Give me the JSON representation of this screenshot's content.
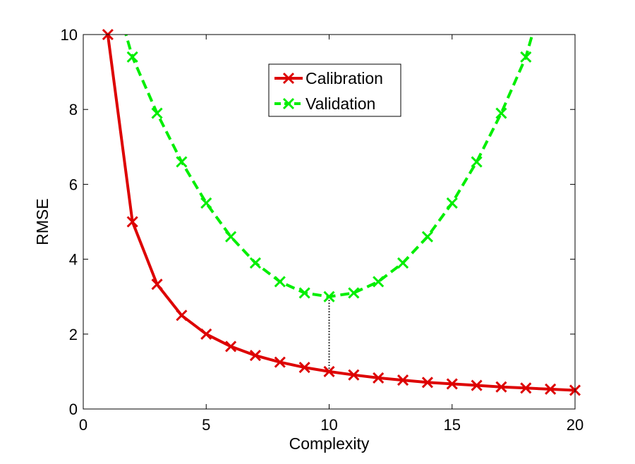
{
  "chart_data": {
    "type": "line",
    "xlabel": "Complexity",
    "ylabel": "RMSE",
    "xlim": [
      0,
      20
    ],
    "ylim": [
      0,
      10
    ],
    "xticks": [
      0,
      5,
      10,
      15,
      20
    ],
    "yticks": [
      0,
      2,
      4,
      6,
      8,
      10
    ],
    "grid": false,
    "legend_position": "top-center",
    "series": [
      {
        "name": "Calibration",
        "color": "#dd0000",
        "line_style": "solid",
        "marker": "x",
        "x": [
          1,
          2,
          3,
          4,
          5,
          6,
          7,
          8,
          9,
          10,
          11,
          12,
          13,
          14,
          15,
          16,
          17,
          18,
          19,
          20
        ],
        "values": [
          10.0,
          5.0,
          3.33,
          2.5,
          2.0,
          1.67,
          1.43,
          1.25,
          1.11,
          1.0,
          0.91,
          0.83,
          0.77,
          0.71,
          0.67,
          0.63,
          0.59,
          0.56,
          0.53,
          0.5
        ]
      },
      {
        "name": "Validation",
        "color": "#00ee00",
        "line_style": "dashed",
        "marker": "x",
        "x": [
          2,
          3,
          4,
          5,
          6,
          7,
          8,
          9,
          10,
          11,
          12,
          13,
          14,
          15,
          16,
          17,
          18
        ],
        "values": [
          9.4,
          7.9,
          6.6,
          5.5,
          4.6,
          3.9,
          3.4,
          3.1,
          3.0,
          3.1,
          3.4,
          3.9,
          4.6,
          5.5,
          6.6,
          7.9,
          9.4
        ]
      }
    ],
    "annotations": [
      {
        "type": "vertical-dotted-line",
        "x": 10,
        "y_from": 1.0,
        "y_to": 3.0,
        "color": "#000000"
      }
    ]
  }
}
